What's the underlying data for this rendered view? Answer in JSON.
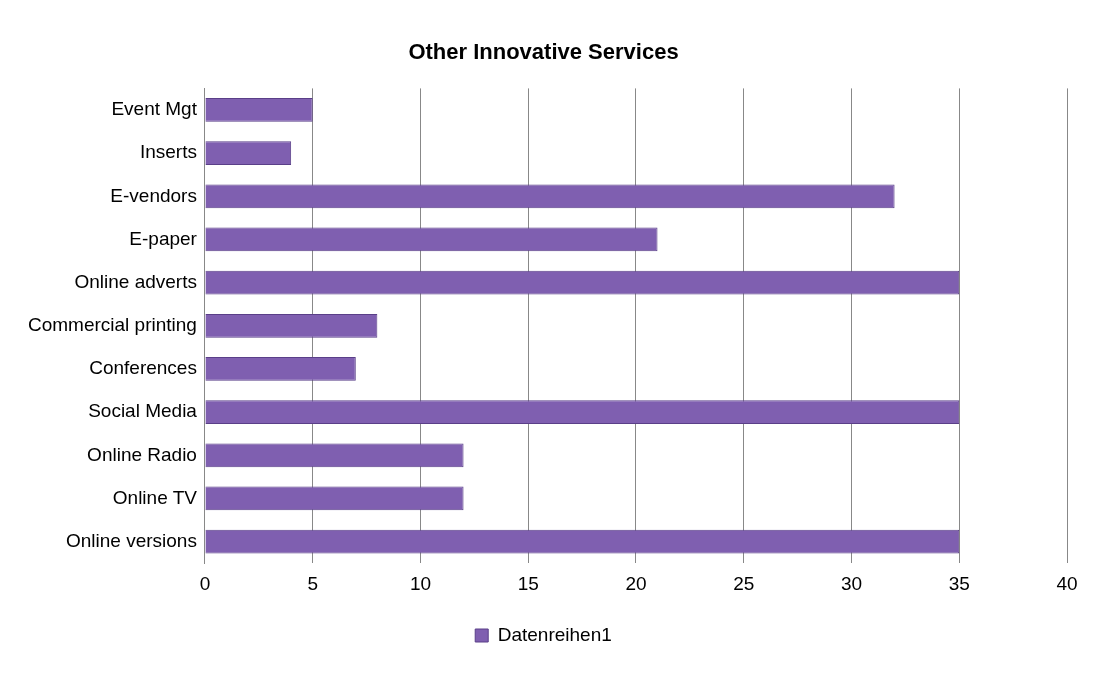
{
  "chart_data": {
    "type": "bar",
    "orientation": "horizontal",
    "title": "Other Innovative Services",
    "categories": [
      "Event Mgt",
      "Inserts",
      "E-vendors",
      "E-paper",
      "Online adverts",
      "Commercial printing",
      "Conferences",
      "Social Media",
      "Online Radio",
      "Online TV",
      "Online versions"
    ],
    "series": [
      {
        "name": "Datenreihen1",
        "color": "#7f5fb0",
        "values": [
          5,
          4,
          32,
          21,
          35,
          8,
          7,
          35,
          12,
          12,
          35
        ]
      }
    ],
    "xlim": [
      0,
      40
    ],
    "xticks": [
      0,
      5,
      10,
      15,
      20,
      25,
      30,
      35,
      40
    ],
    "grid": "x",
    "legend": "bottom"
  }
}
